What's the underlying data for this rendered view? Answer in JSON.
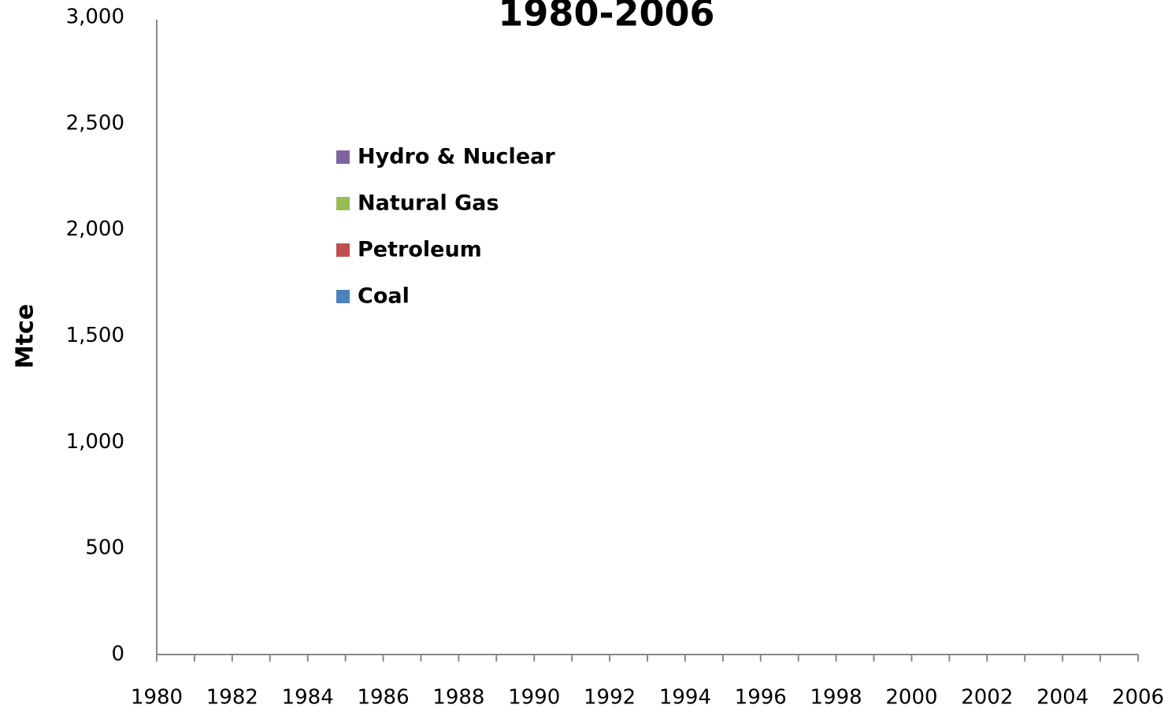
{
  "chart_data": {
    "type": "area",
    "stacked": true,
    "title": "1980-2006",
    "y_label": "Mtce",
    "categories": [
      "1980",
      null,
      "1982",
      null,
      "1984",
      null,
      "1986",
      null,
      "1988",
      null,
      "1990",
      null,
      "1992",
      null,
      "1994",
      null,
      "1996",
      null,
      "1998",
      null,
      "2000",
      null,
      "2002",
      null,
      "2004",
      null,
      "2006"
    ],
    "series": [
      {
        "name": "Coal",
        "color": "#4f81bd"
      },
      {
        "name": "Petroleum",
        "color": "#c0504d"
      },
      {
        "name": "Natural Gas",
        "color": "#9bbb59"
      },
      {
        "name": "Hydro & Nuclear",
        "color": "#8064a2"
      }
    ],
    "ylim": [
      0,
      3000
    ],
    "yticks": [
      0,
      500,
      {
        "value": 1000,
        "label": "1,000"
      },
      {
        "value": 1500,
        "label": "1,500"
      },
      {
        "value": 2000,
        "label": "2,000"
      },
      {
        "value": 2500,
        "label": "2,500"
      },
      {
        "value": 3000,
        "label": "3,000"
      }
    ],
    "grid": false
  }
}
